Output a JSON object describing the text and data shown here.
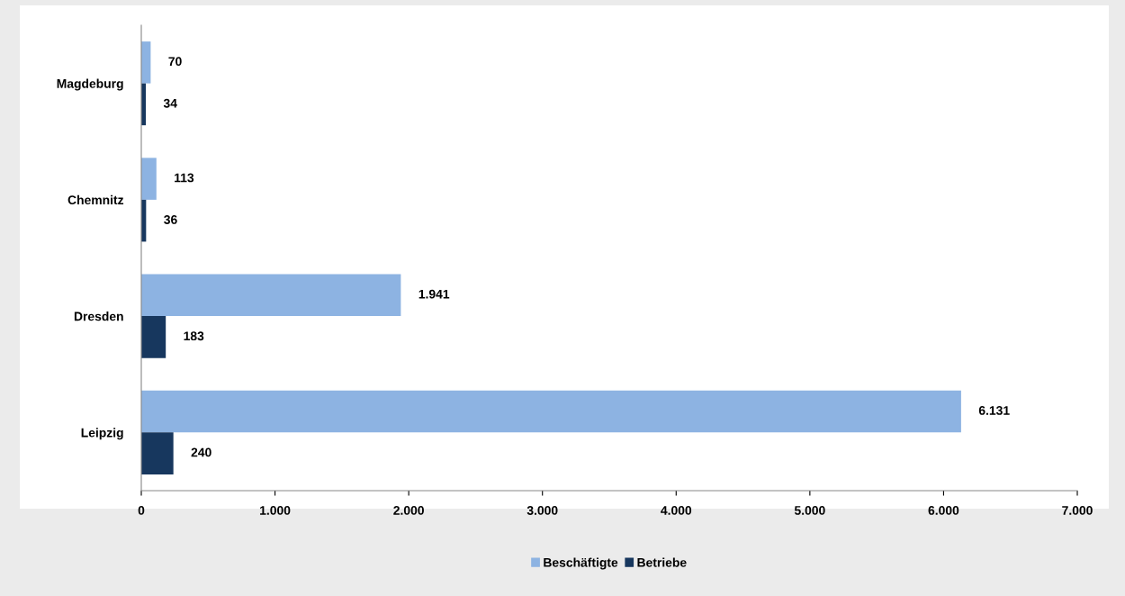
{
  "chart_data": {
    "type": "bar",
    "orientation": "horizontal",
    "categories": [
      "Magdeburg",
      "Chemnitz",
      "Dresden",
      "Leipzig"
    ],
    "series": [
      {
        "name": "Beschäftigte",
        "color": "#8db3e2",
        "values": [
          70,
          113,
          1941,
          6131
        ],
        "value_labels": [
          "70",
          "113",
          "1.941",
          "6.131"
        ]
      },
      {
        "name": "Betriebe",
        "color": "#17375e",
        "values": [
          34,
          36,
          183,
          240
        ],
        "value_labels": [
          "34",
          "36",
          "183",
          "240"
        ]
      }
    ],
    "xlim": [
      0,
      7000
    ],
    "xticks": [
      0,
      {
        "value": 1000,
        "label": "1.000"
      },
      {
        "value": 2000,
        "label": "2.000"
      },
      {
        "value": 3000,
        "label": "3.000"
      },
      {
        "value": 4000,
        "label": "4.000"
      },
      {
        "value": 5000,
        "label": "5.000"
      },
      {
        "value": 6000,
        "label": "6.000"
      },
      {
        "value": 7000,
        "label": "7.000"
      }
    ],
    "grid": false,
    "legend": "bottom"
  }
}
